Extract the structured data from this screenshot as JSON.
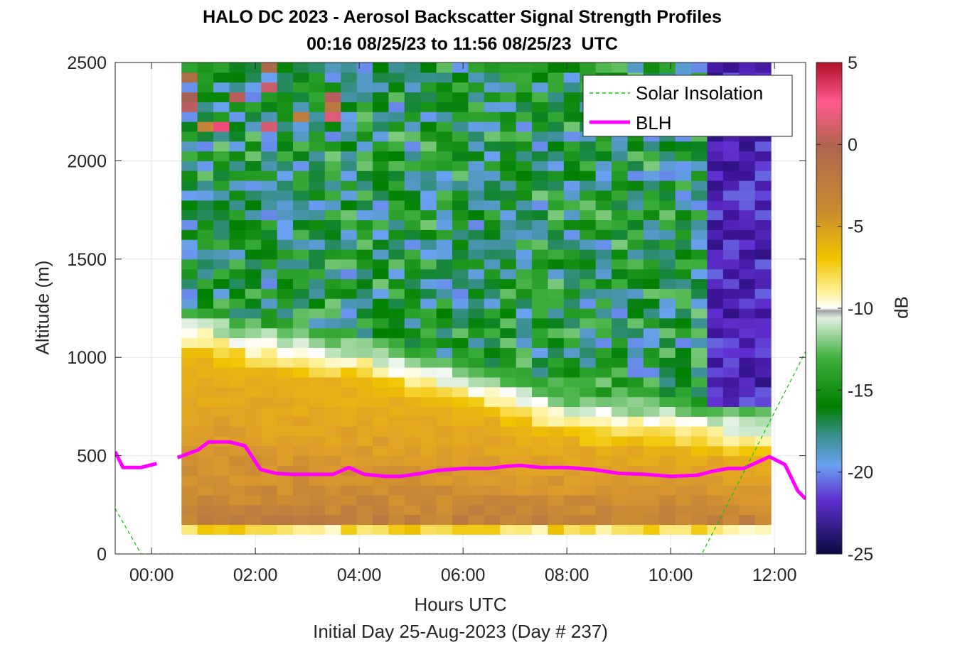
{
  "chart_data": {
    "type": "heatmap",
    "title": "HALO DC 2023 - Aerosol Backscatter Signal Strength Profiles",
    "subtitle": "00:16 08/25/23 to 11:56 08/25/23  UTC",
    "xlabel": "Hours UTC",
    "ylabel": "Altitude (m)",
    "note": "Initial Day 25-Aug-2023 (Day # 237)",
    "colorbar": {
      "label": "dB",
      "range": [
        -25,
        5
      ],
      "ticks": [
        "5",
        "0",
        "-5",
        "-10",
        "-15",
        "-20",
        "-25"
      ],
      "tick_values": [
        5,
        0,
        -5,
        -10,
        -15,
        -20,
        -25
      ]
    },
    "xlim": [
      -0.7,
      12.6
    ],
    "ylim": [
      0,
      2500
    ],
    "x_ticks": [
      "00:00",
      "02:00",
      "04:00",
      "06:00",
      "08:00",
      "10:00",
      "12:00"
    ],
    "x_tick_values": [
      0,
      2,
      4,
      6,
      8,
      10,
      12
    ],
    "y_ticks": [
      "0",
      "500",
      "1000",
      "1500",
      "2000",
      "2500"
    ],
    "y_tick_values": [
      0,
      500,
      1000,
      1500,
      2000,
      2500
    ],
    "grid": true,
    "legend": {
      "placement": "top-right",
      "entries": [
        "Solar Insolation",
        "BLH"
      ]
    },
    "heatmap_extent": {
      "time_start_hours": 0.27,
      "time_end_hours": 11.93,
      "altitude_start_m": 100,
      "altitude_end_m": 2500
    },
    "profile_summary": {
      "surface_layer_db": -8,
      "mixed_layer_db_range": [
        -2,
        -6
      ],
      "aerosol_layer_top_m": {
        "x": [
          0.27,
          2.0,
          4.0,
          6.0,
          8.0,
          10.0,
          11.0,
          11.93
        ],
        "y": [
          1150,
          1050,
          980,
          850,
          700,
          650,
          620,
          600
        ]
      },
      "free_troposphere_db": -16,
      "upper_layer_db_late": -22
    },
    "series": [
      {
        "name": "BLH",
        "color": "#ff00ff",
        "segments": [
          {
            "x": [
              -0.7,
              -0.55,
              -0.2,
              0.1
            ],
            "y": [
              520,
              440,
              440,
              460
            ]
          },
          {
            "x": [
              0.5,
              0.9,
              1.1,
              1.5,
              1.8,
              2.1,
              2.4,
              2.7,
              3.0,
              3.5,
              3.8,
              4.1,
              4.5,
              4.8,
              5.2,
              5.5,
              6.0,
              6.5,
              6.8,
              7.1,
              7.5,
              8.0,
              8.5,
              9.0,
              9.5,
              10.0,
              10.5,
              10.8,
              11.1,
              11.4,
              11.7,
              11.9,
              12.2,
              12.45,
              12.6
            ],
            "y": [
              490,
              530,
              570,
              570,
              550,
              430,
              410,
              405,
              405,
              405,
              440,
              405,
              395,
              395,
              410,
              425,
              435,
              435,
              445,
              450,
              440,
              440,
              430,
              410,
              405,
              395,
              400,
              420,
              435,
              435,
              470,
              495,
              455,
              320,
              280
            ]
          }
        ]
      },
      {
        "name": "Solar Insolation",
        "color": "#00cc00",
        "style": "dashed",
        "x": [
          -0.7,
          -0.2,
          10.6,
          12.6
        ],
        "y": [
          230,
          0,
          0,
          1030
        ]
      }
    ]
  }
}
